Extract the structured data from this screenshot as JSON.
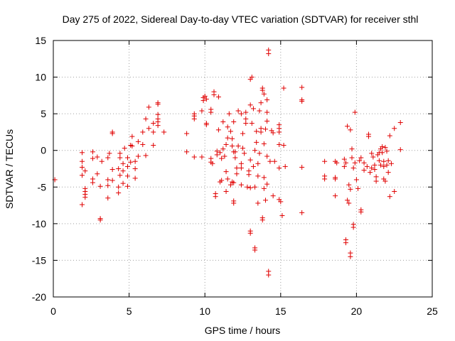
{
  "chart_data": {
    "type": "scatter",
    "title": "Day 275 of 2022, Sidereal Day-to-day VTEC variation (SDTVAR) for receiver sthl",
    "xlabel": "GPS time / hours",
    "ylabel": "SDTVAR / TECUs",
    "xlim": [
      0,
      25
    ],
    "ylim": [
      -20,
      15
    ],
    "xticks": [
      0,
      5,
      10,
      15,
      20,
      25
    ],
    "yticks": [
      -20,
      -15,
      -10,
      -5,
      0,
      5,
      10,
      15
    ],
    "grid": true,
    "marker": "+",
    "color": "#e00000",
    "series": [
      {
        "name": "SDTVAR",
        "points": [
          [
            0.1,
            -4.0
          ],
          [
            1.9,
            -7.4
          ],
          [
            1.9,
            -3.4
          ],
          [
            1.9,
            -2.3
          ],
          [
            1.9,
            -1.5
          ],
          [
            1.9,
            -0.3
          ],
          [
            2.1,
            -6.4
          ],
          [
            2.1,
            -6.0
          ],
          [
            2.1,
            -5.6
          ],
          [
            2.1,
            -5.2
          ],
          [
            2.1,
            -2.8
          ],
          [
            2.6,
            -4.4
          ],
          [
            2.6,
            -3.9
          ],
          [
            2.6,
            -1.1
          ],
          [
            2.6,
            -0.2
          ],
          [
            2.9,
            -3.2
          ],
          [
            2.9,
            -0.9
          ],
          [
            3.1,
            -9.3
          ],
          [
            3.1,
            -9.5
          ],
          [
            3.1,
            -4.9
          ],
          [
            3.2,
            -1.5
          ],
          [
            3.6,
            -6.5
          ],
          [
            3.6,
            -4.8
          ],
          [
            3.6,
            -4.0
          ],
          [
            3.6,
            -1.0
          ],
          [
            3.7,
            -0.4
          ],
          [
            3.9,
            2.3
          ],
          [
            3.9,
            2.5
          ],
          [
            3.9,
            -2.6
          ],
          [
            3.9,
            -4.1
          ],
          [
            4.3,
            -5.8
          ],
          [
            4.3,
            -5.0
          ],
          [
            4.3,
            -2.5
          ],
          [
            4.4,
            -3.4
          ],
          [
            4.4,
            -1.0
          ],
          [
            4.4,
            -0.4
          ],
          [
            4.6,
            -4.5
          ],
          [
            4.6,
            -2.8
          ],
          [
            4.6,
            -1.8
          ],
          [
            4.7,
            0.3
          ],
          [
            4.9,
            -4.9
          ],
          [
            4.9,
            -3.5
          ],
          [
            4.9,
            -2.2
          ],
          [
            4.9,
            -1.0
          ],
          [
            5.1,
            -1.6
          ],
          [
            5.1,
            0.7
          ],
          [
            5.2,
            1.9
          ],
          [
            5.2,
            0.6
          ],
          [
            5.4,
            -3.8
          ],
          [
            5.4,
            -2.5
          ],
          [
            5.4,
            -1.5
          ],
          [
            5.6,
            -0.8
          ],
          [
            5.6,
            1.2
          ],
          [
            5.9,
            2.5
          ],
          [
            5.9,
            0.8
          ],
          [
            6.1,
            4.3
          ],
          [
            6.1,
            -0.7
          ],
          [
            6.3,
            5.9
          ],
          [
            6.3,
            3.0
          ],
          [
            6.6,
            2.5
          ],
          [
            6.6,
            0.7
          ],
          [
            6.6,
            3.7
          ],
          [
            6.9,
            6.5
          ],
          [
            6.9,
            6.3
          ],
          [
            6.9,
            4.9
          ],
          [
            6.9,
            4.3
          ],
          [
            6.9,
            3.9
          ],
          [
            6.9,
            3.4
          ],
          [
            7.3,
            2.5
          ],
          [
            8.8,
            2.3
          ],
          [
            8.8,
            -0.2
          ],
          [
            9.3,
            5.0
          ],
          [
            9.3,
            4.7
          ],
          [
            9.3,
            4.3
          ],
          [
            9.3,
            -0.9
          ],
          [
            9.8,
            5.4
          ],
          [
            9.8,
            -0.9
          ],
          [
            9.9,
            6.8
          ],
          [
            9.9,
            7.2
          ],
          [
            10.0,
            7.4
          ],
          [
            10.1,
            3.7
          ],
          [
            10.1,
            3.5
          ],
          [
            10.1,
            7.0
          ],
          [
            10.4,
            5.6
          ],
          [
            10.4,
            5.2
          ],
          [
            10.4,
            -1.1
          ],
          [
            10.4,
            -1.6
          ],
          [
            10.5,
            -1.8
          ],
          [
            10.6,
            8.0
          ],
          [
            10.6,
            7.6
          ],
          [
            10.7,
            -5.9
          ],
          [
            10.7,
            -6.3
          ],
          [
            10.8,
            -0.1
          ],
          [
            10.8,
            -0.6
          ],
          [
            10.9,
            7.3
          ],
          [
            10.9,
            2.8
          ],
          [
            11.0,
            -0.3
          ],
          [
            11.0,
            -4.3
          ],
          [
            11.1,
            -4.1
          ],
          [
            11.1,
            -1.1
          ],
          [
            11.2,
            3.9
          ],
          [
            11.2,
            0.2
          ],
          [
            11.3,
            -0.8
          ],
          [
            11.4,
            -5.6
          ],
          [
            11.4,
            -2.9
          ],
          [
            11.4,
            0.8
          ],
          [
            11.5,
            -3.9
          ],
          [
            11.5,
            1.7
          ],
          [
            11.5,
            3.2
          ],
          [
            11.6,
            5.0
          ],
          [
            11.7,
            2.6
          ],
          [
            11.7,
            -4.7
          ],
          [
            11.8,
            -4.3
          ],
          [
            11.8,
            0.6
          ],
          [
            11.8,
            1.6
          ],
          [
            11.9,
            -0.2
          ],
          [
            11.9,
            -6.9
          ],
          [
            11.9,
            -7.2
          ],
          [
            11.9,
            -4.4
          ],
          [
            11.9,
            3.9
          ],
          [
            12.0,
            -1.0
          ],
          [
            12.0,
            -0.2
          ],
          [
            12.1,
            -2.4
          ],
          [
            12.1,
            -3.2
          ],
          [
            12.2,
            0.6
          ],
          [
            12.2,
            5.4
          ],
          [
            12.4,
            -1.8
          ],
          [
            12.4,
            -2.4
          ],
          [
            12.4,
            -4.7
          ],
          [
            12.4,
            5.0
          ],
          [
            12.5,
            2.3
          ],
          [
            12.5,
            0.3
          ],
          [
            12.6,
            -0.4
          ],
          [
            12.7,
            3.7
          ],
          [
            12.7,
            4.3
          ],
          [
            12.7,
            5.2
          ],
          [
            12.8,
            -5.0
          ],
          [
            12.9,
            -3.3
          ],
          [
            12.9,
            -2.8
          ],
          [
            13.0,
            -11.0
          ],
          [
            13.0,
            -11.3
          ],
          [
            13.0,
            -5.1
          ],
          [
            13.0,
            -1.3
          ],
          [
            13.0,
            6.2
          ],
          [
            13.0,
            9.7
          ],
          [
            13.1,
            10.0
          ],
          [
            13.1,
            3.7
          ],
          [
            13.2,
            -2.2
          ],
          [
            13.2,
            5.7
          ],
          [
            13.3,
            -13.3
          ],
          [
            13.3,
            -13.6
          ],
          [
            13.3,
            -5.0
          ],
          [
            13.3,
            0.0
          ],
          [
            13.4,
            2.6
          ],
          [
            13.4,
            1.1
          ],
          [
            13.5,
            -7.2
          ],
          [
            13.5,
            -3.5
          ],
          [
            13.5,
            -1.8
          ],
          [
            13.6,
            -0.4
          ],
          [
            13.6,
            5.4
          ],
          [
            13.7,
            2.5
          ],
          [
            13.7,
            3.0
          ],
          [
            13.7,
            6.5
          ],
          [
            13.8,
            -9.2
          ],
          [
            13.8,
            -9.5
          ],
          [
            13.8,
            8.2
          ],
          [
            13.8,
            8.5
          ],
          [
            13.9,
            7.7
          ],
          [
            13.9,
            -3.7
          ],
          [
            13.9,
            0.9
          ],
          [
            13.9,
            -5.2
          ],
          [
            14.0,
            2.9
          ],
          [
            14.0,
            -6.8
          ],
          [
            14.1,
            5.2
          ],
          [
            14.1,
            -0.8
          ],
          [
            14.1,
            4.0
          ],
          [
            14.1,
            6.9
          ],
          [
            14.1,
            -4.6
          ],
          [
            14.2,
            13.2
          ],
          [
            14.2,
            13.7
          ],
          [
            14.2,
            -16.5
          ],
          [
            14.2,
            -17.0
          ],
          [
            14.3,
            -1.5
          ],
          [
            14.4,
            2.7
          ],
          [
            14.5,
            2.4
          ],
          [
            14.5,
            -6.2
          ],
          [
            14.6,
            -1.5
          ],
          [
            14.9,
            3.5
          ],
          [
            14.9,
            3.0
          ],
          [
            14.9,
            2.5
          ],
          [
            14.9,
            0.8
          ],
          [
            14.9,
            -2.4
          ],
          [
            14.9,
            -6.7
          ],
          [
            15.0,
            -7.0
          ],
          [
            15.1,
            -8.9
          ],
          [
            15.2,
            0.7
          ],
          [
            15.2,
            8.5
          ],
          [
            15.3,
            -2.2
          ],
          [
            16.4,
            8.6
          ],
          [
            16.4,
            6.9
          ],
          [
            16.4,
            6.7
          ],
          [
            16.4,
            -2.3
          ],
          [
            16.4,
            -8.5
          ],
          [
            17.9,
            -1.5
          ],
          [
            17.9,
            -3.9
          ],
          [
            17.9,
            -3.5
          ],
          [
            18.6,
            -1.5
          ],
          [
            18.6,
            -3.7
          ],
          [
            18.6,
            -3.9
          ],
          [
            18.6,
            -6.2
          ],
          [
            18.7,
            -1.7
          ],
          [
            19.2,
            -1.2
          ],
          [
            19.2,
            -2.2
          ],
          [
            19.3,
            -1.7
          ],
          [
            19.3,
            -12.2
          ],
          [
            19.3,
            -12.6
          ],
          [
            19.4,
            3.3
          ],
          [
            19.4,
            -6.8
          ],
          [
            19.5,
            -4.7
          ],
          [
            19.5,
            -7.2
          ],
          [
            19.6,
            -14.0
          ],
          [
            19.6,
            -14.5
          ],
          [
            19.6,
            -5.3
          ],
          [
            19.6,
            2.8
          ],
          [
            19.7,
            0.2
          ],
          [
            19.7,
            -1.0
          ],
          [
            19.8,
            -10.1
          ],
          [
            19.8,
            -10.5
          ],
          [
            19.8,
            -2.4
          ],
          [
            19.9,
            5.2
          ],
          [
            19.9,
            -1.7
          ],
          [
            20.0,
            -4.0
          ],
          [
            20.1,
            -5.2
          ],
          [
            20.2,
            -1.4
          ],
          [
            20.3,
            -8.1
          ],
          [
            20.3,
            -8.4
          ],
          [
            20.3,
            -1.0
          ],
          [
            20.5,
            -1.7
          ],
          [
            20.5,
            -2.7
          ],
          [
            20.7,
            -2.2
          ],
          [
            20.8,
            2.2
          ],
          [
            20.8,
            1.9
          ],
          [
            20.9,
            -3.0
          ],
          [
            21.0,
            -2.4
          ],
          [
            21.0,
            -0.4
          ],
          [
            21.1,
            -0.9
          ],
          [
            21.2,
            -2.6
          ],
          [
            21.2,
            -2.0
          ],
          [
            21.3,
            -4.2
          ],
          [
            21.3,
            -3.6
          ],
          [
            21.4,
            -0.6
          ],
          [
            21.5,
            -0.3
          ],
          [
            21.5,
            -1.4
          ],
          [
            21.6,
            0.2
          ],
          [
            21.6,
            -2.0
          ],
          [
            21.7,
            0.5
          ],
          [
            21.7,
            -0.3
          ],
          [
            21.8,
            -2.2
          ],
          [
            21.8,
            -1.5
          ],
          [
            21.8,
            -3.9
          ],
          [
            21.9,
            -4.2
          ],
          [
            21.9,
            0.4
          ],
          [
            22.0,
            -2.0
          ],
          [
            22.0,
            -0.1
          ],
          [
            22.1,
            -1.4
          ],
          [
            22.1,
            -3.0
          ],
          [
            22.2,
            -6.3
          ],
          [
            22.2,
            2.0
          ],
          [
            22.3,
            -1.8
          ],
          [
            22.5,
            -5.6
          ],
          [
            22.5,
            3.0
          ],
          [
            22.9,
            3.8
          ],
          [
            22.9,
            0.1
          ]
        ]
      }
    ]
  }
}
